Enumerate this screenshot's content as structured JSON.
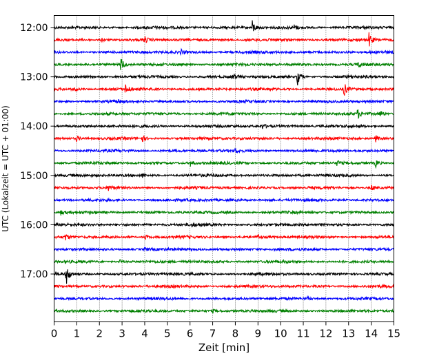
{
  "chart_data": {
    "type": "line",
    "subtype": "helicorder",
    "xlabel": "Zeit  [min]",
    "ylabel": "UTC (Lokalzeit = UTC + 01:00)",
    "xlim": [
      0,
      15
    ],
    "x_ticks": [
      "0",
      "1",
      "2",
      "3",
      "4",
      "5",
      "6",
      "7",
      "8",
      "9",
      "10",
      "11",
      "12",
      "13",
      "14",
      "15"
    ],
    "y_ticks": [
      "12:00",
      "13:00",
      "14:00",
      "15:00",
      "16:00",
      "17:00"
    ],
    "grid": "x-dotted",
    "colors": [
      "#000000",
      "#ff0000",
      "#0000ff",
      "#008000"
    ],
    "trace_minutes_per_line": 15,
    "traces": [
      {
        "start": "12:00",
        "color": "#000000",
        "events": [
          {
            "t": 8.75,
            "amp": 0.6
          },
          {
            "t": 10.6,
            "amp": 0.2
          }
        ]
      },
      {
        "start": "12:15",
        "color": "#ff0000",
        "events": [
          {
            "t": 2.1,
            "amp": 0.2
          },
          {
            "t": 4.0,
            "amp": 0.25
          },
          {
            "t": 13.9,
            "amp": 0.65
          }
        ]
      },
      {
        "start": "12:30",
        "color": "#0000ff",
        "events": [
          {
            "t": 5.6,
            "amp": 0.2
          }
        ]
      },
      {
        "start": "12:45",
        "color": "#008000",
        "events": [
          {
            "t": 2.95,
            "amp": 0.65
          },
          {
            "t": 13.4,
            "amp": 0.25
          }
        ]
      },
      {
        "start": "13:00",
        "color": "#000000",
        "events": [
          {
            "t": 7.9,
            "amp": 0.3
          },
          {
            "t": 10.75,
            "amp": 0.7
          }
        ]
      },
      {
        "start": "13:15",
        "color": "#ff0000",
        "events": [
          {
            "t": 0.9,
            "amp": 0.2
          },
          {
            "t": 3.15,
            "amp": 0.35
          },
          {
            "t": 12.8,
            "amp": 0.55
          }
        ]
      },
      {
        "start": "13:30",
        "color": "#0000ff",
        "events": [
          {
            "t": 2.8,
            "amp": 0.15
          }
        ]
      },
      {
        "start": "13:45",
        "color": "#008000",
        "events": [
          {
            "t": 13.4,
            "amp": 0.4
          },
          {
            "t": 14.4,
            "amp": 0.3
          }
        ]
      },
      {
        "start": "14:00",
        "color": "#000000",
        "events": [
          {
            "t": 9.2,
            "amp": 0.2
          }
        ]
      },
      {
        "start": "14:15",
        "color": "#ff0000",
        "events": [
          {
            "t": 1.0,
            "amp": 0.25
          },
          {
            "t": 3.9,
            "amp": 0.3
          },
          {
            "t": 14.2,
            "amp": 0.3
          }
        ]
      },
      {
        "start": "14:30",
        "color": "#0000ff",
        "events": [
          {
            "t": 8.0,
            "amp": 0.15
          }
        ]
      },
      {
        "start": "14:45",
        "color": "#008000",
        "events": [
          {
            "t": 6.0,
            "amp": 0.3
          },
          {
            "t": 12.5,
            "amp": 0.25
          },
          {
            "t": 14.2,
            "amp": 0.35
          }
        ]
      },
      {
        "start": "15:00",
        "color": "#000000",
        "events": [
          {
            "t": 3.9,
            "amp": 0.15
          }
        ]
      },
      {
        "start": "15:15",
        "color": "#ff0000",
        "events": [
          {
            "t": 2.4,
            "amp": 0.25
          },
          {
            "t": 14.0,
            "amp": 0.3
          }
        ]
      },
      {
        "start": "15:30",
        "color": "#0000ff",
        "events": [
          {
            "t": 9.5,
            "amp": 0.2
          }
        ]
      },
      {
        "start": "15:45",
        "color": "#008000",
        "events": [
          {
            "t": 0.3,
            "amp": 0.2
          }
        ]
      },
      {
        "start": "16:00",
        "color": "#000000",
        "events": [
          {
            "t": 6.1,
            "amp": 0.15
          }
        ]
      },
      {
        "start": "16:15",
        "color": "#ff0000",
        "events": [
          {
            "t": 0.5,
            "amp": 0.25
          },
          {
            "t": 4.0,
            "amp": 0.25
          },
          {
            "t": 9.0,
            "amp": 0.2
          }
        ]
      },
      {
        "start": "16:30",
        "color": "#0000ff",
        "events": [
          {
            "t": 4.0,
            "amp": 0.15
          }
        ]
      },
      {
        "start": "16:45",
        "color": "#008000",
        "events": [
          {
            "t": 2.9,
            "amp": 0.15
          }
        ]
      },
      {
        "start": "17:00",
        "color": "#000000",
        "events": [
          {
            "t": 0.55,
            "amp": 0.8
          }
        ]
      },
      {
        "start": "17:15",
        "color": "#ff0000",
        "events": []
      },
      {
        "start": "17:30",
        "color": "#0000ff",
        "events": [
          {
            "t": 11.2,
            "amp": 0.15
          }
        ]
      },
      {
        "start": "17:45",
        "color": "#008000",
        "events": [
          {
            "t": 7.0,
            "amp": 0.12
          }
        ]
      }
    ]
  }
}
